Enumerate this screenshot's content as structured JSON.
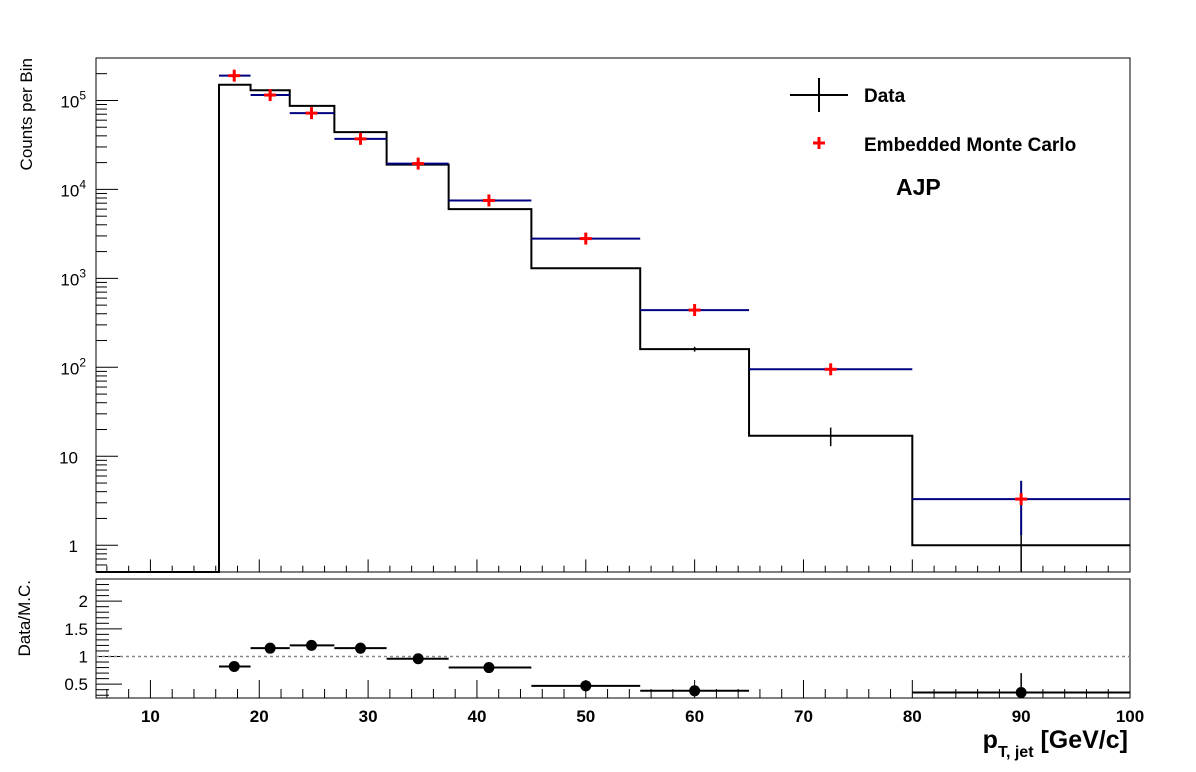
{
  "chart_data": [
    {
      "type": "histogram",
      "ylabel": "Counts per Bin",
      "yscale": "log",
      "xlim": [
        5,
        100
      ],
      "ylim": [
        0.5,
        300000
      ],
      "ytick_labels": [
        "1",
        "10",
        "10^2",
        "10^3",
        "10^4",
        "10^5"
      ],
      "annotation": "AJP",
      "legend_position": "top-right",
      "legend": [
        {
          "label": "Data",
          "marker": "cross-black"
        },
        {
          "label": "Embedded Monte Carlo",
          "marker": "plus-red"
        }
      ],
      "bin_edges": [
        16.3,
        19.2,
        22.8,
        26.9,
        31.7,
        37.4,
        45,
        55,
        65,
        80,
        100
      ],
      "series": [
        {
          "name": "Data",
          "color": "#000000",
          "values": [
            150000,
            130000,
            87000,
            44000,
            19000,
            6000,
            1300,
            160,
            17,
            1
          ],
          "errors": [
            0,
            0,
            0,
            0,
            0,
            0,
            0,
            10,
            4,
            1
          ]
        },
        {
          "name": "Embedded Monte Carlo",
          "color": "#000080",
          "marker_color": "#ff0000",
          "x": [
            17.7,
            21,
            24.8,
            29.3,
            34.6,
            41.1,
            50,
            60,
            72.5,
            90
          ],
          "values": [
            190000,
            115000,
            72000,
            37000,
            19500,
            7500,
            2800,
            440,
            95,
            3.3
          ],
          "errors": [
            0,
            0,
            0,
            0,
            0,
            0,
            0,
            0,
            0,
            2
          ]
        }
      ]
    },
    {
      "type": "scatter",
      "ylabel": "Data/M.C.",
      "xlabel": "p_{T, jet} [GeV/c]",
      "xlim": [
        5,
        100
      ],
      "ylim": [
        0.25,
        2.4
      ],
      "ytick_labels": [
        "0.5",
        "1",
        "1.5",
        "2"
      ],
      "xtick_labels": [
        "10",
        "20",
        "30",
        "40",
        "50",
        "60",
        "70",
        "80",
        "90",
        "100"
      ],
      "reference_line": 1,
      "bin_edges": [
        16.3,
        19.2,
        22.8,
        26.9,
        31.7,
        37.4,
        45,
        55,
        65,
        80,
        100
      ],
      "series": [
        {
          "name": "Data/M.C.",
          "color": "#000000",
          "x": [
            17.7,
            21,
            24.8,
            29.3,
            34.6,
            41.1,
            50,
            60,
            72.5,
            90
          ],
          "values": [
            0.82,
            1.15,
            1.2,
            1.15,
            0.96,
            0.8,
            0.47,
            0.38,
            null,
            0.35
          ],
          "errors": [
            0.03,
            0.03,
            0.03,
            0.1,
            0.03,
            0.03,
            0.03,
            0.03,
            null,
            0.35
          ]
        }
      ]
    }
  ]
}
